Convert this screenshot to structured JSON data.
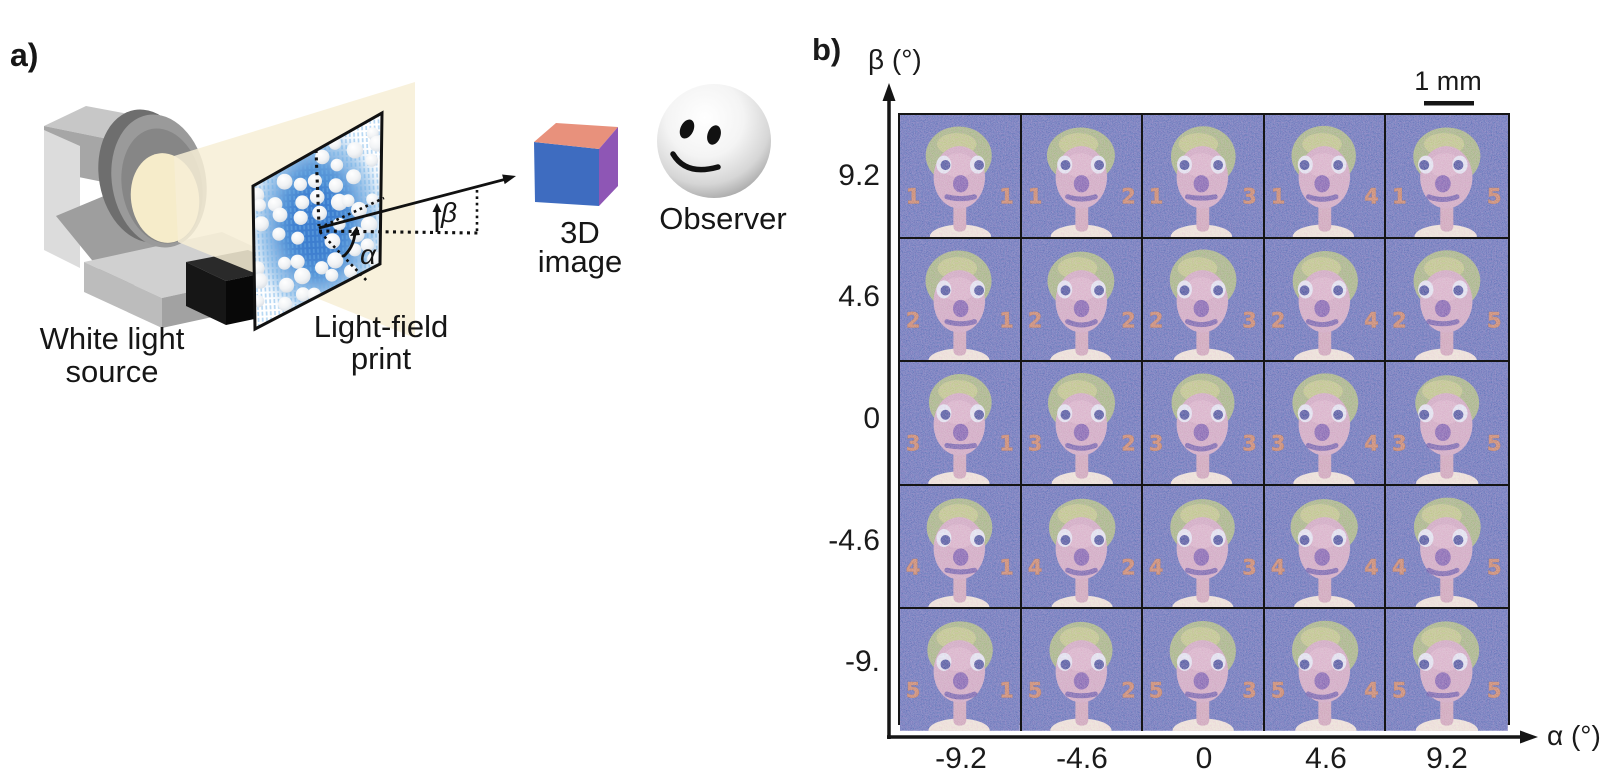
{
  "figure": {
    "panel_a_tag": "a)",
    "panel_b_tag": "b)"
  },
  "panel_a": {
    "source_label_line1": "White light",
    "source_label_line2": "source",
    "print_label_line1": "Light-field",
    "print_label_line2": "print",
    "cube_label_line1": "3D",
    "cube_label_line2": "image",
    "observer_label": "Observer",
    "alpha_symbol": "α",
    "beta_symbol": "β"
  },
  "panel_b": {
    "y_axis_label": "β (°)",
    "x_axis_label": "α (°)",
    "scale_bar_label": "1 mm",
    "y_ticks": [
      "9.2",
      "4.6",
      "0",
      "-4.6",
      "-9."
    ],
    "x_ticks": [
      "-9.2",
      "-4.6",
      "0",
      "4.6",
      "9.2"
    ],
    "grid": {
      "rows": 5,
      "cols": 5,
      "row_digits": [
        "1",
        "2",
        "3",
        "4",
        "5"
      ],
      "col_digits": [
        "1",
        "2",
        "3",
        "4",
        "5"
      ]
    }
  },
  "colors": {
    "cell_bg": "#3c56ae",
    "hair": "#94ae6e",
    "hair_light": "#bcc878",
    "skin": "#c7a0b8",
    "skin_light": "#dab7c9",
    "sclera": "#dde7f0",
    "pupil": "#2c3c8e",
    "nose": "#6a4da3",
    "mouth": "#443a98",
    "digit": "#bf7750",
    "neck": "#c59cae",
    "collar": "#eae5d2",
    "cube_front": "#3e6cc0",
    "cube_top": "#e8917c",
    "cube_side": "#8e56b5",
    "beam": "#f7eed6",
    "print_blue": "#4a90d8",
    "axis_color": "#151515"
  }
}
